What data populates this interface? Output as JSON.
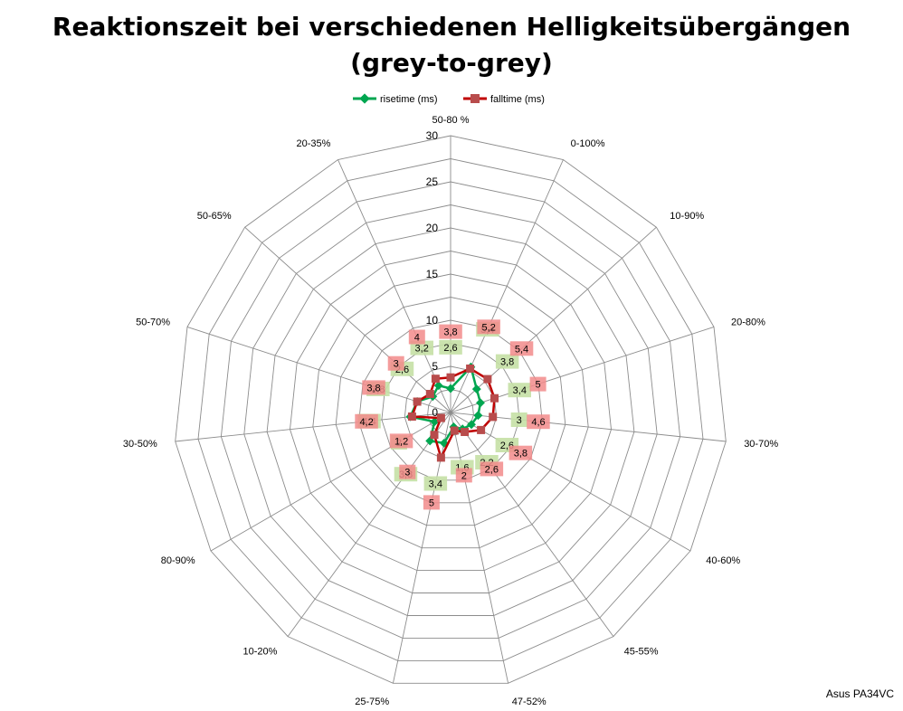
{
  "chart_data": {
    "type": "radar",
    "title_lines": [
      "Reaktionszeit bei verschiedenen Helligkeitsübergängen",
      "(grey-to-grey)"
    ],
    "categories": [
      "50-80 %",
      "0-100%",
      "10-90%",
      "20-80%",
      "30-70%",
      "40-60%",
      "45-55%",
      "47-52%",
      "25-75%",
      "10-20%",
      "80-90%",
      "30-50%",
      "50-70%",
      "50-65%",
      "20-35%"
    ],
    "series": [
      {
        "name": "risetime (ms)",
        "color": "#00a650",
        "label_bg": "#c5e0a5",
        "values": [
          2.6,
          5.4,
          3.8,
          3.4,
          3,
          2.6,
          2.2,
          1.6,
          3.4,
          3.8,
          2,
          4.4,
          3.8,
          2.6,
          3.2
        ],
        "labels": [
          "2,6",
          "5,4",
          "3,8",
          "3,4",
          "3",
          "2,6",
          "2,2",
          "1,6",
          "3,4",
          "3,8",
          "2",
          "4,4",
          "3,8",
          "2,6",
          "3,2"
        ]
      },
      {
        "name": "falltime (ms)",
        "color": "#c00000",
        "label_bg": "#f28b8b",
        "values": [
          3.8,
          5.2,
          5.4,
          5,
          4.6,
          3.8,
          2.6,
          2,
          5,
          3,
          1.2,
          4.2,
          3.8,
          3,
          4
        ],
        "labels": [
          "3,8",
          "5,2",
          "5,4",
          "5",
          "4,6",
          "3,8",
          "2,6",
          "2",
          "5",
          "3",
          "1,2",
          "4,2",
          "3,8",
          "3",
          "4"
        ]
      }
    ],
    "rmin": 0,
    "rmax": 30,
    "ticks": [
      0,
      5,
      10,
      15,
      20,
      25,
      30
    ],
    "grid": true,
    "legend_position": "top"
  },
  "watermark": "Asus PA34VC"
}
